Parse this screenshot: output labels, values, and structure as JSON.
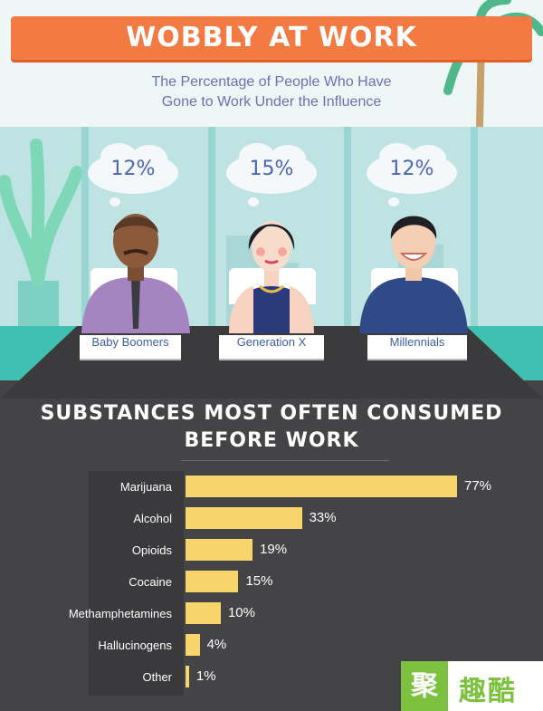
{
  "header": {
    "title": "WOBBLY AT WORK",
    "subtitle_line1": "The Percentage of People Who Have",
    "subtitle_line2": "Gone to Work Under the Influence"
  },
  "groups": [
    {
      "name": "Baby Boomers",
      "percent": "12%"
    },
    {
      "name": "Generation X",
      "percent": "15%"
    },
    {
      "name": "Millennials",
      "percent": "12%"
    }
  ],
  "chart_title_line1": "SUBSTANCES MOST OFTEN CONSUMED",
  "chart_title_line2": "BEFORE WORK",
  "chart_data": {
    "type": "bar",
    "title": "SUBSTANCES MOST OFTEN CONSUMED BEFORE WORK",
    "orientation": "horizontal",
    "categories": [
      "Marijuana",
      "Alcohol",
      "Opioids",
      "Cocaine",
      "Methamphetamines",
      "Hallucinogens",
      "Other"
    ],
    "values": [
      77,
      33,
      19,
      15,
      10,
      4,
      1
    ],
    "value_labels": [
      "77%",
      "33%",
      "19%",
      "15%",
      "10%",
      "4%",
      "1%"
    ],
    "xlim": [
      0,
      77
    ],
    "grid": false,
    "bar_color": "#f7d56a"
  },
  "logo": {
    "mark": "聚",
    "text": "趣酷"
  },
  "colors": {
    "banner": "#f37a42",
    "background": "#444447",
    "bar": "#f7d56a"
  }
}
